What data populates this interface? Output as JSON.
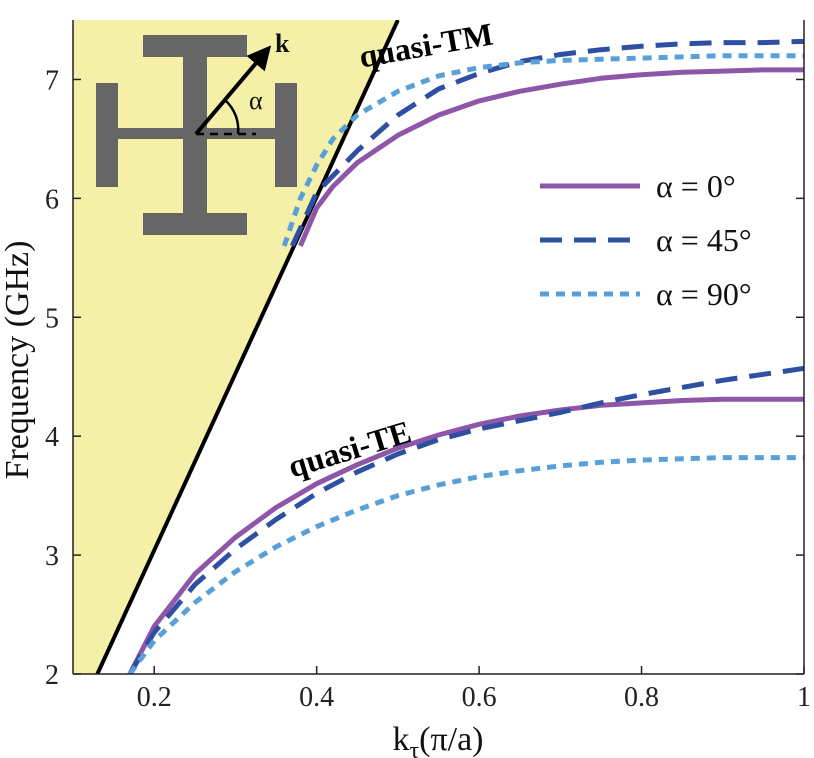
{
  "chart_data": {
    "type": "line",
    "xlabel": "k",
    "xlabel_sub": "τ",
    "xlabel_suffix": "(π/a)",
    "ylabel": "Frequency (GHz)",
    "xlim": [
      0.1,
      1.0
    ],
    "ylim": [
      2,
      7.5
    ],
    "xticks": [
      0.2,
      0.4,
      0.6,
      0.8,
      1
    ],
    "xtick_labels": [
      "0.2",
      "0.4",
      "0.6",
      "0.8",
      "1"
    ],
    "yticks": [
      2,
      3,
      4,
      5,
      6,
      7
    ],
    "ytick_labels": [
      "2",
      "3",
      "4",
      "5",
      "6",
      "7"
    ],
    "grid": false,
    "legend_position": "right",
    "light_line": {
      "x": [
        0.13,
        0.5
      ],
      "y": [
        2.0,
        7.5
      ],
      "fill": "#f5f0a8",
      "color": "#000000"
    },
    "series": [
      {
        "name": "α = 0°",
        "style": "solid",
        "color": "#8e56a8",
        "branches": [
          {
            "x": [
              0.17,
              0.2,
              0.25,
              0.3,
              0.35,
              0.4,
              0.45,
              0.5,
              0.55,
              0.6,
              0.65,
              0.7,
              0.75,
              0.8,
              0.85,
              0.9,
              0.95,
              1.0
            ],
            "y": [
              2.0,
              2.4,
              2.84,
              3.15,
              3.4,
              3.6,
              3.76,
              3.9,
              4.01,
              4.1,
              4.17,
              4.22,
              4.26,
              4.28,
              4.3,
              4.31,
              4.31,
              4.31
            ]
          },
          {
            "x": [
              0.38,
              0.4,
              0.42,
              0.45,
              0.5,
              0.55,
              0.6,
              0.65,
              0.7,
              0.75,
              0.8,
              0.85,
              0.9,
              0.95,
              1.0
            ],
            "y": [
              5.6,
              5.92,
              6.1,
              6.3,
              6.53,
              6.7,
              6.82,
              6.9,
              6.96,
              7.01,
              7.04,
              7.06,
              7.07,
              7.08,
              7.08
            ]
          }
        ]
      },
      {
        "name": "α = 45°",
        "style": "dashed",
        "color": "#2f4fa2",
        "branches": [
          {
            "x": [
              0.17,
              0.2,
              0.25,
              0.3,
              0.35,
              0.4,
              0.45,
              0.5,
              0.55,
              0.6,
              0.65,
              0.7,
              0.75,
              0.8,
              0.85,
              0.9,
              0.95,
              1.0
            ],
            "y": [
              2.0,
              2.35,
              2.75,
              3.05,
              3.3,
              3.52,
              3.7,
              3.85,
              3.97,
              4.06,
              4.13,
              4.2,
              4.28,
              4.35,
              4.41,
              4.47,
              4.52,
              4.57
            ]
          },
          {
            "x": [
              0.37,
              0.4,
              0.45,
              0.5,
              0.55,
              0.6,
              0.65,
              0.7,
              0.75,
              0.8,
              0.85,
              0.9,
              0.95,
              1.0
            ],
            "y": [
              5.6,
              6.05,
              6.4,
              6.7,
              6.92,
              7.05,
              7.15,
              7.21,
              7.25,
              7.28,
              7.3,
              7.31,
              7.31,
              7.32
            ]
          }
        ]
      },
      {
        "name": "α = 90°",
        "style": "dotted",
        "color": "#5aa0d8",
        "branches": [
          {
            "x": [
              0.17,
              0.2,
              0.25,
              0.3,
              0.35,
              0.4,
              0.45,
              0.5,
              0.55,
              0.6,
              0.65,
              0.7,
              0.75,
              0.8,
              0.85,
              0.9,
              0.95,
              1.0
            ],
            "y": [
              2.0,
              2.28,
              2.6,
              2.86,
              3.07,
              3.24,
              3.38,
              3.5,
              3.59,
              3.66,
              3.71,
              3.75,
              3.78,
              3.8,
              3.81,
              3.82,
              3.82,
              3.82
            ]
          },
          {
            "x": [
              0.36,
              0.38,
              0.4,
              0.42,
              0.45,
              0.5,
              0.55,
              0.6,
              0.65,
              0.7,
              0.75,
              0.8,
              0.85,
              0.9,
              0.95,
              1.0
            ],
            "y": [
              5.6,
              6.0,
              6.28,
              6.5,
              6.7,
              6.9,
              7.03,
              7.1,
              7.14,
              7.16,
              7.17,
              7.18,
              7.19,
              7.2,
              7.2,
              7.2
            ]
          }
        ]
      }
    ],
    "annotations": [
      {
        "text": "quasi-TM",
        "x": 0.455,
        "y": 7.1,
        "rotate": -10
      },
      {
        "text": "quasi-TE",
        "x": 0.37,
        "y": 3.65,
        "rotate": -17
      }
    ],
    "inset": {
      "k_label": "k",
      "alpha_label": "α",
      "unit_color": "#666666"
    }
  }
}
